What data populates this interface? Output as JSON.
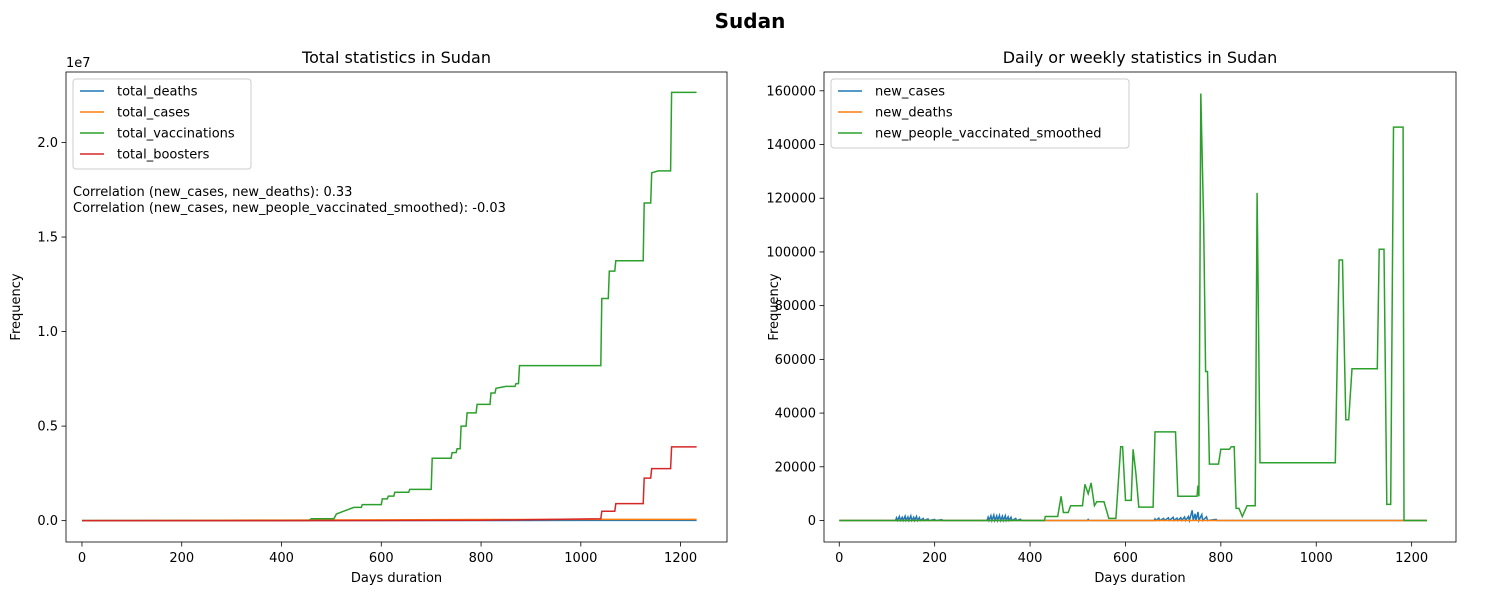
{
  "figure": {
    "suptitle": "Sudan"
  },
  "chart_data": [
    {
      "type": "line",
      "title": "Total statistics in Sudan",
      "xlabel": "Days duration",
      "ylabel": "Frequency",
      "y_scale_label": "1e7",
      "xlim": [
        -32,
        1293
      ],
      "ylim": [
        -1130000,
        23730000
      ],
      "xticks": [
        0,
        200,
        400,
        600,
        800,
        1000,
        1200
      ],
      "yticks": [
        0,
        5000000,
        10000000,
        15000000,
        20000000
      ],
      "ytick_labels": [
        "0.0",
        "0.5",
        "1.0",
        "1.5",
        "2.0"
      ],
      "grid": false,
      "legend_position": "upper left",
      "annotations": [
        "Correlation (new_cases, new_deaths): 0.33",
        "Correlation (new_cases, new_people_vaccinated_smoothed): -0.03"
      ],
      "series": [
        {
          "name": "total_deaths",
          "color": "#1f77b4",
          "points": [
            [
              0,
              0
            ],
            [
              400,
              5000
            ],
            [
              700,
              8000
            ],
            [
              1000,
              10000
            ],
            [
              1232,
              10000
            ]
          ]
        },
        {
          "name": "total_cases",
          "color": "#ff7f0e",
          "points": [
            [
              0,
              0
            ],
            [
              200,
              15000
            ],
            [
              400,
              30000
            ],
            [
              600,
              40000
            ],
            [
              800,
              60000
            ],
            [
              1000,
              63000
            ],
            [
              1232,
              64000
            ]
          ]
        },
        {
          "name": "total_vaccinations",
          "color": "#2ca02c",
          "points": [
            [
              0,
              0
            ],
            [
              455,
              0
            ],
            [
              460,
              100000
            ],
            [
              505,
              100000
            ],
            [
              510,
              350000
            ],
            [
              520,
              450000
            ],
            [
              530,
              550000
            ],
            [
              545,
              700000
            ],
            [
              560,
              700000
            ],
            [
              562,
              850000
            ],
            [
              600,
              850000
            ],
            [
              602,
              1150000
            ],
            [
              612,
              1150000
            ],
            [
              614,
              1300000
            ],
            [
              625,
              1300000
            ],
            [
              627,
              1500000
            ],
            [
              655,
              1500000
            ],
            [
              657,
              1650000
            ],
            [
              700,
              1650000
            ],
            [
              702,
              3300000
            ],
            [
              740,
              3300000
            ],
            [
              742,
              3600000
            ],
            [
              750,
              3600000
            ],
            [
              752,
              3800000
            ],
            [
              758,
              3800000
            ],
            [
              760,
              5000000
            ],
            [
              770,
              5000000
            ],
            [
              772,
              5700000
            ],
            [
              790,
              5700000
            ],
            [
              792,
              6150000
            ],
            [
              818,
              6150000
            ],
            [
              820,
              6750000
            ],
            [
              828,
              6750000
            ],
            [
              830,
              7000000
            ],
            [
              850,
              7100000
            ],
            [
              868,
              7100000
            ],
            [
              870,
              7250000
            ],
            [
              875,
              7250000
            ],
            [
              877,
              8200000
            ],
            [
              1040,
              8200000
            ],
            [
              1042,
              11750000
            ],
            [
              1055,
              11750000
            ],
            [
              1057,
              13200000
            ],
            [
              1068,
              13200000
            ],
            [
              1070,
              13750000
            ],
            [
              1125,
              13750000
            ],
            [
              1127,
              16800000
            ],
            [
              1140,
              16800000
            ],
            [
              1142,
              18400000
            ],
            [
              1155,
              18500000
            ],
            [
              1180,
              18500000
            ],
            [
              1182,
              22650000
            ],
            [
              1232,
              22650000
            ]
          ]
        },
        {
          "name": "total_boosters",
          "color": "#d62728",
          "points": [
            [
              0,
              0
            ],
            [
              400,
              0
            ],
            [
              800,
              20000
            ],
            [
              1040,
              100000
            ],
            [
              1042,
              500000
            ],
            [
              1068,
              500000
            ],
            [
              1070,
              900000
            ],
            [
              1125,
              900000
            ],
            [
              1127,
              2250000
            ],
            [
              1140,
              2250000
            ],
            [
              1142,
              2750000
            ],
            [
              1180,
              2750000
            ],
            [
              1182,
              3900000
            ],
            [
              1232,
              3900000
            ]
          ]
        }
      ]
    },
    {
      "type": "line",
      "title": "Daily or weekly statistics in Sudan",
      "xlabel": "Days duration",
      "ylabel": "Frequency",
      "xlim": [
        -32,
        1293
      ],
      "ylim": [
        -8000,
        167000
      ],
      "xticks": [
        0,
        200,
        400,
        600,
        800,
        1000,
        1200
      ],
      "yticks": [
        0,
        20000,
        40000,
        60000,
        80000,
        100000,
        120000,
        140000,
        160000
      ],
      "grid": false,
      "legend_position": "upper left",
      "series": [
        {
          "name": "new_cases",
          "color": "#1f77b4",
          "points": [
            [
              0,
              0
            ],
            [
              118,
              0
            ],
            [
              120,
              1000
            ],
            [
              122,
              0
            ],
            [
              126,
              1500
            ],
            [
              128,
              0
            ],
            [
              132,
              1200
            ],
            [
              134,
              0
            ],
            [
              138,
              1600
            ],
            [
              140,
              0
            ],
            [
              144,
              1300
            ],
            [
              146,
              0
            ],
            [
              150,
              1700
            ],
            [
              152,
              0
            ],
            [
              156,
              1200
            ],
            [
              158,
              0
            ],
            [
              162,
              1500
            ],
            [
              164,
              0
            ],
            [
              168,
              1100
            ],
            [
              170,
              0
            ],
            [
              176,
              800
            ],
            [
              178,
              0
            ],
            [
              186,
              600
            ],
            [
              188,
              0
            ],
            [
              200,
              400
            ],
            [
              202,
              0
            ],
            [
              215,
              300
            ],
            [
              217,
              0
            ],
            [
              310,
              0
            ],
            [
              312,
              1200
            ],
            [
              314,
              0
            ],
            [
              318,
              1800
            ],
            [
              320,
              0
            ],
            [
              324,
              2000
            ],
            [
              326,
              0
            ],
            [
              330,
              1700
            ],
            [
              332,
              0
            ],
            [
              336,
              1900
            ],
            [
              338,
              0
            ],
            [
              342,
              1600
            ],
            [
              344,
              0
            ],
            [
              348,
              1800
            ],
            [
              350,
              0
            ],
            [
              354,
              1400
            ],
            [
              356,
              0
            ],
            [
              360,
              1200
            ],
            [
              362,
              0
            ],
            [
              370,
              800
            ],
            [
              372,
              0
            ],
            [
              380,
              500
            ],
            [
              382,
              0
            ],
            [
              520,
              0
            ],
            [
              522,
              400
            ],
            [
              524,
              0
            ],
            [
              660,
              0
            ],
            [
              662,
              600
            ],
            [
              664,
              0
            ],
            [
              670,
              900
            ],
            [
              672,
              0
            ],
            [
              680,
              800
            ],
            [
              682,
              0
            ],
            [
              690,
              1000
            ],
            [
              692,
              0
            ],
            [
              700,
              1200
            ],
            [
              702,
              0
            ],
            [
              708,
              900
            ],
            [
              710,
              0
            ],
            [
              716,
              1100
            ],
            [
              718,
              0
            ],
            [
              724,
              1300
            ],
            [
              726,
              0
            ],
            [
              732,
              1500
            ],
            [
              734,
              0
            ],
            [
              740,
              3800
            ],
            [
              742,
              0
            ],
            [
              746,
              2500
            ],
            [
              748,
              0
            ],
            [
              752,
              3200
            ],
            [
              754,
              0
            ],
            [
              760,
              2200
            ],
            [
              762,
              0
            ],
            [
              770,
              1400
            ],
            [
              772,
              0
            ],
            [
              790,
              400
            ],
            [
              792,
              0
            ],
            [
              1232,
              0
            ]
          ]
        },
        {
          "name": "new_deaths",
          "color": "#ff7f0e",
          "points": [
            [
              0,
              0
            ],
            [
              1232,
              0
            ]
          ]
        },
        {
          "name": "new_people_vaccinated_smoothed",
          "color": "#2ca02c",
          "points": [
            [
              0,
              0
            ],
            [
              430,
              0
            ],
            [
              432,
              1500
            ],
            [
              458,
              1500
            ],
            [
              465,
              9000
            ],
            [
              470,
              3000
            ],
            [
              480,
              3000
            ],
            [
              485,
              5500
            ],
            [
              510,
              5500
            ],
            [
              515,
              13500
            ],
            [
              522,
              10000
            ],
            [
              528,
              14000
            ],
            [
              535,
              5500
            ],
            [
              540,
              7000
            ],
            [
              555,
              7000
            ],
            [
              565,
              800
            ],
            [
              580,
              800
            ],
            [
              590,
              27500
            ],
            [
              594,
              27500
            ],
            [
              600,
              7500
            ],
            [
              612,
              7500
            ],
            [
              616,
              26500
            ],
            [
              622,
              17500
            ],
            [
              628,
              5000
            ],
            [
              658,
              5000
            ],
            [
              662,
              33000
            ],
            [
              705,
              33000
            ],
            [
              710,
              9000
            ],
            [
              750,
              9000
            ],
            [
              752,
              13000
            ],
            [
              754,
              9000
            ],
            [
              758,
              159000
            ],
            [
              764,
              110000
            ],
            [
              768,
              55500
            ],
            [
              772,
              55500
            ],
            [
              776,
              21000
            ],
            [
              795,
              21000
            ],
            [
              800,
              26500
            ],
            [
              818,
              26500
            ],
            [
              822,
              27500
            ],
            [
              828,
              27500
            ],
            [
              832,
              4500
            ],
            [
              838,
              4500
            ],
            [
              845,
              1500
            ],
            [
              855,
              5500
            ],
            [
              872,
              5500
            ],
            [
              876,
              122000
            ],
            [
              882,
              21500
            ],
            [
              1040,
              21500
            ],
            [
              1048,
              97000
            ],
            [
              1055,
              97000
            ],
            [
              1062,
              37500
            ],
            [
              1068,
              37500
            ],
            [
              1075,
              56500
            ],
            [
              1128,
              56500
            ],
            [
              1132,
              101000
            ],
            [
              1142,
              101000
            ],
            [
              1148,
              6000
            ],
            [
              1156,
              6000
            ],
            [
              1162,
              146500
            ],
            [
              1182,
              146500
            ],
            [
              1184,
              0
            ],
            [
              1232,
              0
            ]
          ]
        }
      ]
    }
  ]
}
